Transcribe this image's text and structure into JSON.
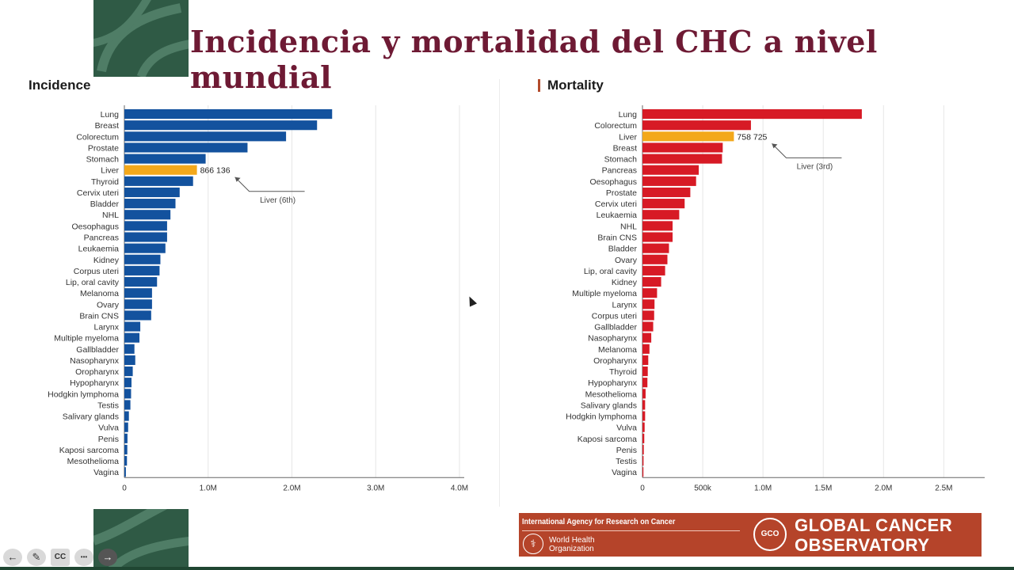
{
  "slide": {
    "title": "Incidencia y mortalidad del CHC a nivel mundial",
    "incidence_heading": "Incidence",
    "mortality_heading": "Mortality"
  },
  "chart_data": [
    {
      "type": "bar",
      "orientation": "horizontal",
      "title": "Incidence",
      "xlim": [
        0,
        4000000
      ],
      "x_ticks": [
        0,
        1000000,
        2000000,
        3000000,
        4000000
      ],
      "x_tick_labels": [
        "0",
        "1.0M",
        "2.0M",
        "3.0M",
        "4.0M"
      ],
      "grid": true,
      "colors": {
        "bar": "#13529e",
        "highlight": "#f3a81b"
      },
      "highlight": "Liver",
      "data_label": {
        "category": "Liver",
        "text": "866 136"
      },
      "annotation": {
        "category": "Liver",
        "text": "Liver (6th)"
      },
      "categories": [
        "Lung",
        "Breast",
        "Colorectum",
        "Prostate",
        "Stomach",
        "Liver",
        "Thyroid",
        "Cervix uteri",
        "Bladder",
        "NHL",
        "Oesophagus",
        "Pancreas",
        "Leukaemia",
        "Kidney",
        "Corpus uteri",
        "Lip, oral cavity",
        "Melanoma",
        "Ovary",
        "Brain CNS",
        "Larynx",
        "Multiple myeloma",
        "Gallbladder",
        "Nasopharynx",
        "Oropharynx",
        "Hypopharynx",
        "Hodgkin lymphoma",
        "Testis",
        "Salivary glands",
        "Vulva",
        "Penis",
        "Kaposi sarcoma",
        "Mesothelioma",
        "Vagina"
      ],
      "values": [
        2480000,
        2300000,
        1930000,
        1470000,
        970000,
        866136,
        820000,
        660000,
        610000,
        550000,
        510000,
        510000,
        490000,
        430000,
        420000,
        390000,
        330000,
        330000,
        320000,
        190000,
        180000,
        120000,
        130000,
        100000,
        85000,
        80000,
        72000,
        54000,
        45000,
        37000,
        35000,
        31000,
        18000
      ]
    },
    {
      "type": "bar",
      "orientation": "horizontal",
      "title": "Mortality",
      "xlim": [
        0,
        2800000
      ],
      "x_ticks": [
        0,
        500000,
        1000000,
        1500000,
        2000000,
        2500000
      ],
      "x_tick_labels": [
        "0",
        "500k",
        "1.0M",
        "1.5M",
        "2.0M",
        "2.5M"
      ],
      "grid": true,
      "colors": {
        "bar": "#d71a25",
        "highlight": "#f3a81b"
      },
      "highlight": "Liver",
      "data_label": {
        "category": "Liver",
        "text": "758 725"
      },
      "annotation": {
        "category": "Liver",
        "text": "Liver (3rd)"
      },
      "categories": [
        "Lung",
        "Colorectum",
        "Liver",
        "Breast",
        "Stomach",
        "Pancreas",
        "Oesophagus",
        "Prostate",
        "Cervix uteri",
        "Leukaemia",
        "NHL",
        "Brain CNS",
        "Bladder",
        "Ovary",
        "Lip, oral cavity",
        "Kidney",
        "Multiple myeloma",
        "Larynx",
        "Corpus uteri",
        "Gallbladder",
        "Nasopharynx",
        "Melanoma",
        "Oropharynx",
        "Thyroid",
        "Hypopharynx",
        "Mesothelioma",
        "Salivary glands",
        "Hodgkin lymphoma",
        "Vulva",
        "Kaposi sarcoma",
        "Penis",
        "Testis",
        "Vagina"
      ],
      "values": [
        1820000,
        900000,
        758725,
        666000,
        660000,
        467000,
        445000,
        397000,
        350000,
        305000,
        250000,
        250000,
        220000,
        207000,
        188000,
        155000,
        121000,
        100000,
        97000,
        89000,
        73000,
        58000,
        48000,
        44000,
        41000,
        26000,
        22000,
        22000,
        18000,
        15000,
        11000,
        9000,
        8000
      ]
    }
  ],
  "footer": {
    "iarc_label": "International Agency for Research on Cancer",
    "who_label": "World Health Organization",
    "who_emblem": "⚕",
    "gco_logo": "GCO",
    "gco_line1": "GLOBAL CANCER",
    "gco_line2": "OBSERVATORY"
  },
  "controls": [
    {
      "icon": "back-arrow-icon",
      "glyph": "←"
    },
    {
      "icon": "pencil-icon",
      "glyph": "✎"
    },
    {
      "icon": "captions-icon",
      "glyph": "CC"
    },
    {
      "icon": "more-icon",
      "glyph": "•••"
    },
    {
      "icon": "next-arrow-icon",
      "glyph": "→"
    }
  ]
}
